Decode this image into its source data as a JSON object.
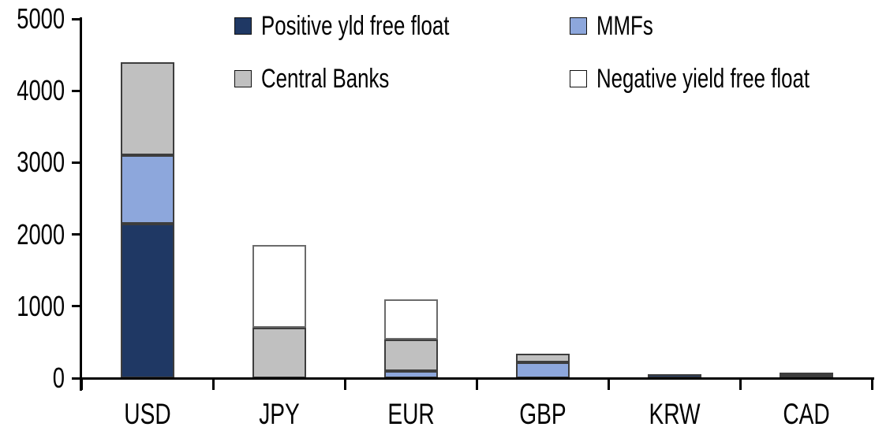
{
  "chart_data": {
    "type": "bar",
    "stacked": true,
    "title": "",
    "xlabel": "",
    "ylabel": "",
    "categories": [
      "USD",
      "JPY",
      "EUR",
      "GBP",
      "KRW",
      "CAD"
    ],
    "series": [
      {
        "name": "Positive yld free float",
        "color": "#1F3864",
        "values": [
          2150,
          0,
          0,
          0,
          50,
          40
        ]
      },
      {
        "name": "MMFs",
        "color": "#8DA7DC",
        "values": [
          950,
          0,
          100,
          220,
          0,
          0
        ]
      },
      {
        "name": "Central Banks",
        "color": "#C0C0C0",
        "values": [
          1300,
          700,
          440,
          120,
          0,
          40
        ]
      },
      {
        "name": "Negative yield free float",
        "color": "#FFFFFF",
        "values": [
          0,
          1150,
          560,
          0,
          0,
          0
        ]
      }
    ],
    "totals": [
      4400,
      1850,
      1100,
      340,
      50,
      80
    ],
    "ylim": [
      0,
      5000
    ],
    "yticks": [
      0,
      1000,
      2000,
      3000,
      4000,
      5000
    ],
    "grid": false,
    "legend_position": "top",
    "axis_color": "#000000"
  }
}
